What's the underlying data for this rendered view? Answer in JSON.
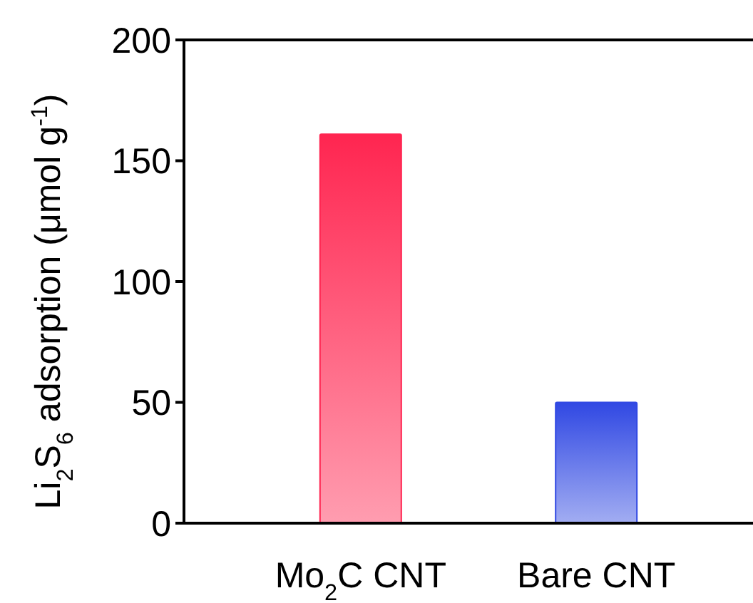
{
  "chart_data": {
    "type": "bar",
    "ylabel": "Li$_{2}$S$_{6}$ adsorption (μmol g$^{-1}$)",
    "categories": [
      "Mo$_{2}$C CNT",
      "Bare CNT"
    ],
    "values": [
      161,
      50
    ],
    "colors": [
      "#ff2550",
      "#3048e3"
    ],
    "ylim": [
      0,
      200
    ],
    "yticks": [
      0,
      50,
      100,
      150,
      200
    ],
    "grid": false
  }
}
